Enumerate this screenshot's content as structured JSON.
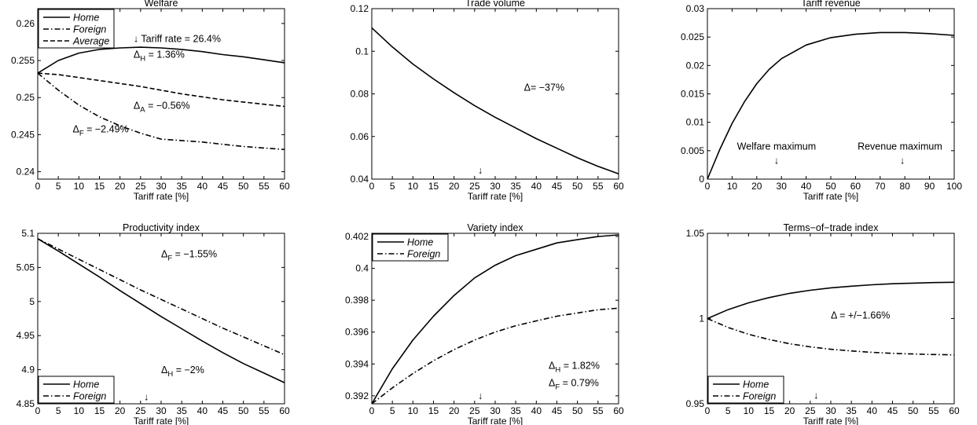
{
  "chart_data": [
    {
      "type": "line",
      "title": "Welfare",
      "xlabel": "Tariff rate [%]",
      "xlim": [
        0,
        60
      ],
      "ylim": [
        0.239,
        0.262
      ],
      "xticks": [
        "0",
        "5",
        "10",
        "15",
        "20",
        "25",
        "30",
        "35",
        "40",
        "45",
        "50",
        "55",
        "60"
      ],
      "yticks": [
        "0.24",
        "0.245",
        "0.25",
        "0.255",
        "0.26"
      ],
      "legend": {
        "placement": "top-left",
        "italic": true,
        "entries": [
          "Home",
          "Foreign",
          "Average"
        ]
      },
      "x": [
        0,
        5,
        10,
        15,
        20,
        25,
        30,
        35,
        40,
        45,
        50,
        55,
        60
      ],
      "series": [
        {
          "name": "Home",
          "style": "solid",
          "values": [
            0.2533,
            0.255,
            0.256,
            0.2565,
            0.2567,
            0.2568,
            0.2567,
            0.2565,
            0.2562,
            0.2558,
            0.2555,
            0.2551,
            0.2547
          ]
        },
        {
          "name": "Foreign",
          "style": "dashdot",
          "values": [
            0.2533,
            0.251,
            0.249,
            0.2474,
            0.2462,
            0.2452,
            0.2444,
            0.2442,
            0.244,
            0.2437,
            0.2434,
            0.2432,
            0.243
          ]
        },
        {
          "name": "Average",
          "style": "dashed",
          "values": [
            0.2533,
            0.2531,
            0.2527,
            0.2523,
            0.2519,
            0.2515,
            0.251,
            0.2505,
            0.2501,
            0.2497,
            0.2494,
            0.2491,
            0.2488
          ]
        }
      ],
      "annotations": [
        {
          "text": "↓ Tariff rate = 26.4%",
          "x": 23.3,
          "y": 0.2575
        },
        {
          "text": "Δ",
          "sub": "H",
          "suffix": " =  1.36%",
          "x": 23.3,
          "y": 0.2554
        },
        {
          "text": "Δ",
          "sub": "A",
          "suffix": " =  −0.56%",
          "x": 23.3,
          "y": 0.2485
        },
        {
          "text": "Δ",
          "sub": "F",
          "suffix": " =  −2.49%",
          "x": 8.5,
          "y": 0.2453
        }
      ]
    },
    {
      "type": "line",
      "title": "Trade volume",
      "xlabel": "Tariff rate [%]",
      "xlim": [
        0,
        60
      ],
      "ylim": [
        0.04,
        0.12
      ],
      "xticks": [
        "0",
        "5",
        "10",
        "15",
        "20",
        "25",
        "30",
        "35",
        "40",
        "45",
        "50",
        "55",
        "60"
      ],
      "yticks": [
        "0.04",
        "0.06",
        "0.08",
        "0.1",
        "0.12"
      ],
      "x": [
        0,
        5,
        10,
        15,
        20,
        25,
        30,
        35,
        40,
        45,
        50,
        55,
        60
      ],
      "series": [
        {
          "style": "solid",
          "values": [
            0.111,
            0.102,
            0.094,
            0.087,
            0.0805,
            0.0745,
            0.069,
            0.064,
            0.059,
            0.0545,
            0.05,
            0.046,
            0.0425
          ]
        }
      ],
      "annotations": [
        {
          "text": "Δ=  −37%",
          "x": 37,
          "y": 0.0815
        },
        {
          "text": "↓",
          "x": 26.4,
          "y": 0.0425
        }
      ]
    },
    {
      "type": "line",
      "title": "Tariff revenue",
      "xlabel": "Tariff rate [%]",
      "xlim": [
        0,
        100
      ],
      "ylim": [
        0,
        0.03
      ],
      "xticks": [
        "0",
        "10",
        "20",
        "30",
        "40",
        "50",
        "60",
        "70",
        "80",
        "90",
        "100"
      ],
      "yticks": [
        "0",
        "0.005",
        "0.01",
        "0.015",
        "0.02",
        "0.025",
        "0.03"
      ],
      "x": [
        0,
        5,
        10,
        15,
        20,
        25,
        30,
        40,
        50,
        60,
        70,
        80,
        90,
        100
      ],
      "series": [
        {
          "style": "solid",
          "values": [
            0,
            0.0052,
            0.0098,
            0.0136,
            0.0168,
            0.0193,
            0.0212,
            0.0236,
            0.0249,
            0.0255,
            0.0258,
            0.0258,
            0.0256,
            0.0253
          ]
        }
      ],
      "annotations": [
        {
          "text": "Welfare maximum",
          "x": 28,
          "y": 0.0052
        },
        {
          "text": "↓",
          "x": 28,
          "y": 0.0027
        },
        {
          "text": "Revenue maximum",
          "x": 78,
          "y": 0.0052
        },
        {
          "text": "↓",
          "x": 79,
          "y": 0.0027
        }
      ]
    },
    {
      "type": "line",
      "title": "Productivity index",
      "xlabel": "Tariff rate [%]",
      "xlim": [
        0,
        60
      ],
      "ylim": [
        4.85,
        5.1
      ],
      "xticks": [
        "0",
        "5",
        "10",
        "15",
        "20",
        "25",
        "30",
        "35",
        "40",
        "45",
        "50",
        "55",
        "60"
      ],
      "yticks": [
        "4.85",
        "4.9",
        "4.95",
        "5",
        "5.05",
        "5.1"
      ],
      "legend": {
        "placement": "bottom-left",
        "italic": true,
        "entries": [
          "Home",
          "Foreign"
        ]
      },
      "x": [
        0,
        5,
        10,
        15,
        20,
        25,
        30,
        35,
        40,
        45,
        50,
        55,
        60
      ],
      "series": [
        {
          "name": "Home",
          "style": "solid",
          "values": [
            5.092,
            5.074,
            5.055,
            5.036,
            5.016,
            4.997,
            4.978,
            4.96,
            4.942,
            4.925,
            4.909,
            4.895,
            4.881
          ]
        },
        {
          "name": "Foreign",
          "style": "dashdot",
          "values": [
            5.092,
            5.077,
            5.062,
            5.047,
            5.032,
            5.017,
            5.003,
            4.989,
            4.975,
            4.961,
            4.948,
            4.935,
            4.922
          ]
        }
      ],
      "annotations": [
        {
          "text": "Δ",
          "sub": "F",
          "suffix": " =  −1.55%",
          "x": 30,
          "y": 5.065
        },
        {
          "text": "Δ",
          "sub": "H",
          "suffix": " =  −2%",
          "x": 30,
          "y": 4.895
        },
        {
          "text": "↓",
          "x": 26.4,
          "y": 4.855
        }
      ]
    },
    {
      "type": "line",
      "title": "Variety index",
      "xlabel": "Tariff rate [%]",
      "xlim": [
        0,
        60
      ],
      "ylim": [
        0.3915,
        0.4022
      ],
      "xticks": [
        "0",
        "5",
        "10",
        "15",
        "20",
        "25",
        "30",
        "35",
        "40",
        "45",
        "50",
        "55",
        "60"
      ],
      "yticks": [
        "0.392",
        "0.394",
        "0.396",
        "0.398",
        "0.4",
        "0.402"
      ],
      "legend": {
        "placement": "top-left",
        "italic": false,
        "entries": [
          "Home",
          "Foreign"
        ]
      },
      "x": [
        0,
        5,
        10,
        15,
        20,
        25,
        30,
        35,
        40,
        45,
        50,
        55,
        60
      ],
      "series": [
        {
          "name": "Home",
          "style": "solid",
          "values": [
            0.3915,
            0.3937,
            0.3955,
            0.397,
            0.3983,
            0.3994,
            0.4002,
            0.4008,
            0.4012,
            0.4016,
            0.4018,
            0.402,
            0.4021
          ]
        },
        {
          "name": "Foreign",
          "style": "dashdot",
          "values": [
            0.3915,
            0.3925,
            0.3934,
            0.3942,
            0.3949,
            0.3955,
            0.396,
            0.3964,
            0.3967,
            0.397,
            0.3972,
            0.3974,
            0.3975
          ]
        }
      ],
      "annotations": [
        {
          "text": "Δ",
          "sub": "H",
          "suffix": " =  1.82%",
          "x": 43,
          "y": 0.3937
        },
        {
          "text": "Δ",
          "sub": "F",
          "suffix": " =  0.79%",
          "x": 43,
          "y": 0.3926
        },
        {
          "text": "↓",
          "x": 26.4,
          "y": 0.3918
        }
      ]
    },
    {
      "type": "line",
      "title": "Terms−of−trade index",
      "xlabel": "Tariff rate [%]",
      "xlim": [
        0,
        60
      ],
      "ylim": [
        0.95,
        1.05
      ],
      "xticks": [
        "0",
        "5",
        "10",
        "15",
        "20",
        "25",
        "30",
        "35",
        "40",
        "45",
        "50",
        "55",
        "60"
      ],
      "yticks": [
        "0.95",
        "1",
        "1.05"
      ],
      "legend": {
        "placement": "bottom-left",
        "italic": true,
        "entries": [
          "Home",
          "Foreign"
        ]
      },
      "x": [
        0,
        5,
        10,
        15,
        20,
        25,
        30,
        35,
        40,
        45,
        50,
        55,
        60
      ],
      "series": [
        {
          "name": "Home",
          "style": "solid",
          "values": [
            1.0,
            1.0052,
            1.0092,
            1.0123,
            1.0148,
            1.0166,
            1.018,
            1.019,
            1.0198,
            1.0204,
            1.0208,
            1.0211,
            1.0213
          ]
        },
        {
          "name": "Foreign",
          "style": "dashdot",
          "values": [
            1.0,
            0.9948,
            0.9908,
            0.9877,
            0.9852,
            0.9834,
            0.982,
            0.981,
            0.9802,
            0.9796,
            0.9792,
            0.9789,
            0.9787
          ]
        }
      ],
      "annotations": [
        {
          "text": "Δ =  +/−1.66%",
          "x": 30,
          "y": 1.0
        },
        {
          "text": "↓",
          "x": 26.4,
          "y": 0.953
        }
      ]
    }
  ]
}
